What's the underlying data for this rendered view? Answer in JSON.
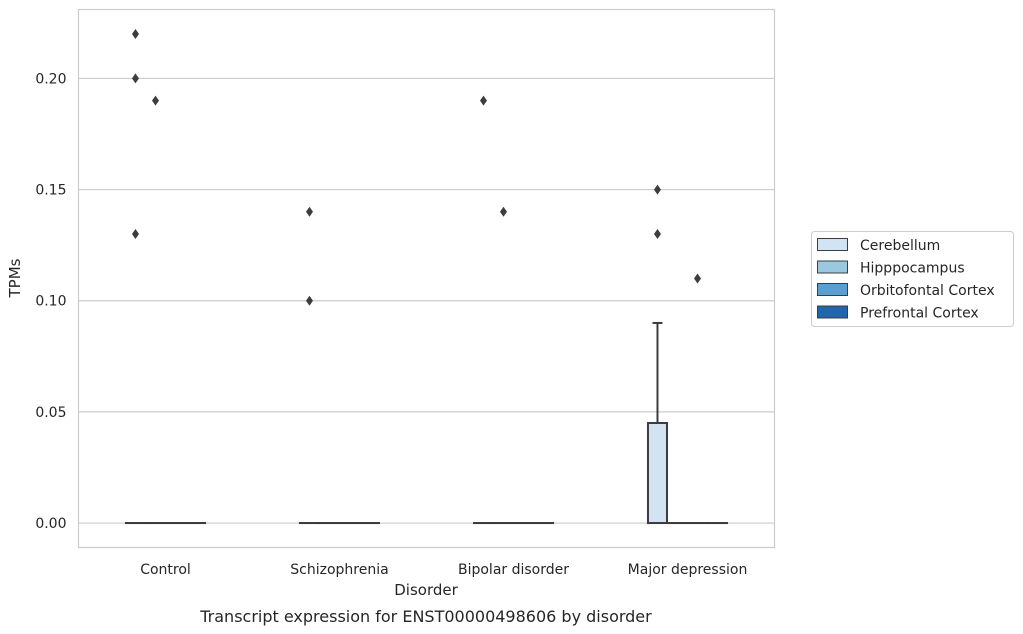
{
  "chart_data": {
    "type": "box",
    "title": "Transcript expression for ENST00000498606 by disorder",
    "xlabel": "Disorder",
    "ylabel": "TPMs",
    "ylim": [
      -0.011,
      0.231
    ],
    "yticks": [
      0.0,
      0.05,
      0.1,
      0.15,
      0.2
    ],
    "ytick_labels": [
      "0.00",
      "0.05",
      "0.10",
      "0.15",
      "0.20"
    ],
    "grid": "horizontal",
    "legend_position": "center-right",
    "categories": [
      "Control",
      "Schizophrenia",
      "Bipolar disorder",
      "Major depression"
    ],
    "series": [
      {
        "name": "Cerebellum",
        "color": "#d2e3f3",
        "boxes": [
          {
            "q1": 0.0,
            "median": 0.0,
            "q3": 0.0,
            "whislo": 0.0,
            "whishi": 0.0,
            "fliers": [
              0.13,
              0.2,
              0.22
            ]
          },
          {
            "q1": 0.0,
            "median": 0.0,
            "q3": 0.0,
            "whislo": 0.0,
            "whishi": 0.0,
            "fliers": [
              0.1,
              0.14
            ]
          },
          {
            "q1": 0.0,
            "median": 0.0,
            "q3": 0.0,
            "whislo": 0.0,
            "whishi": 0.0,
            "fliers": [
              0.19
            ]
          },
          {
            "q1": 0.0,
            "median": 0.0,
            "q3": 0.045,
            "whislo": 0.0,
            "whishi": 0.09,
            "fliers": [
              0.13,
              0.15
            ]
          }
        ]
      },
      {
        "name": "Hipppocampus",
        "color": "#9ac8e0",
        "boxes": [
          {
            "q1": 0.0,
            "median": 0.0,
            "q3": 0.0,
            "whislo": 0.0,
            "whishi": 0.0,
            "fliers": [
              0.19
            ]
          },
          {
            "q1": 0.0,
            "median": 0.0,
            "q3": 0.0,
            "whislo": 0.0,
            "whishi": 0.0,
            "fliers": []
          },
          {
            "q1": 0.0,
            "median": 0.0,
            "q3": 0.0,
            "whislo": 0.0,
            "whishi": 0.0,
            "fliers": [
              0.14
            ]
          },
          {
            "q1": 0.0,
            "median": 0.0,
            "q3": 0.0,
            "whislo": 0.0,
            "whishi": 0.0,
            "fliers": []
          }
        ]
      },
      {
        "name": "Orbitofontal Cortex",
        "color": "#5a9fcf",
        "boxes": [
          {
            "q1": 0.0,
            "median": 0.0,
            "q3": 0.0,
            "whislo": 0.0,
            "whishi": 0.0,
            "fliers": []
          },
          {
            "q1": 0.0,
            "median": 0.0,
            "q3": 0.0,
            "whislo": 0.0,
            "whishi": 0.0,
            "fliers": []
          },
          {
            "q1": 0.0,
            "median": 0.0,
            "q3": 0.0,
            "whislo": 0.0,
            "whishi": 0.0,
            "fliers": []
          },
          {
            "q1": 0.0,
            "median": 0.0,
            "q3": 0.0,
            "whislo": 0.0,
            "whishi": 0.0,
            "fliers": [
              0.11
            ]
          }
        ]
      },
      {
        "name": "Prefrontal Cortex",
        "color": "#2166ac",
        "boxes": [
          {
            "q1": 0.0,
            "median": 0.0,
            "q3": 0.0,
            "whislo": 0.0,
            "whishi": 0.0,
            "fliers": []
          },
          {
            "q1": 0.0,
            "median": 0.0,
            "q3": 0.0,
            "whislo": 0.0,
            "whishi": 0.0,
            "fliers": []
          },
          {
            "q1": 0.0,
            "median": 0.0,
            "q3": 0.0,
            "whislo": 0.0,
            "whishi": 0.0,
            "fliers": []
          },
          {
            "q1": 0.0,
            "median": 0.0,
            "q3": 0.0,
            "whislo": 0.0,
            "whishi": 0.0,
            "fliers": []
          }
        ]
      }
    ],
    "legend_entries": [
      "Cerebellum",
      "Hipppocampus",
      "Orbitofontal Cortex",
      "Prefrontal Cortex"
    ]
  },
  "colors": {
    "grid": "#cccccc",
    "spine": "#cccccc",
    "box_edge": "#3d3d3d",
    "text": "#262626"
  }
}
